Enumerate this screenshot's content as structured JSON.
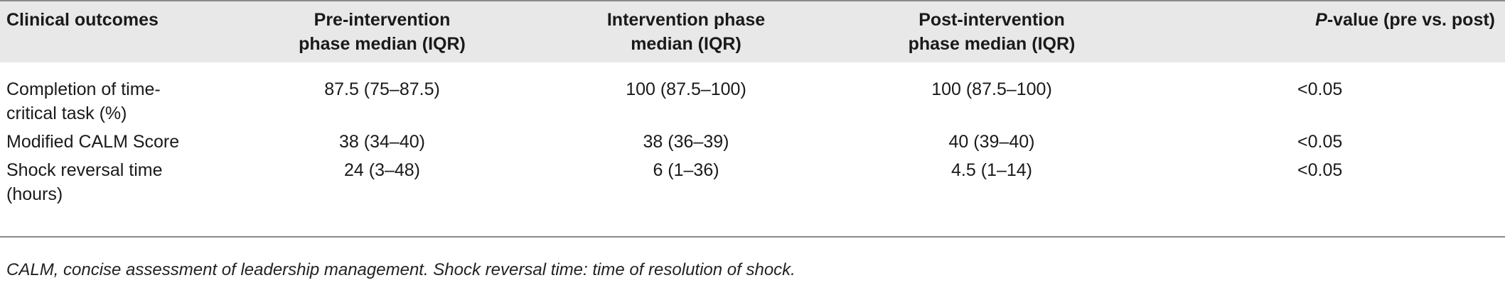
{
  "table": {
    "headers": {
      "outcome": "Clinical outcomes",
      "pre_line1": "Pre-intervention",
      "pre_line2": "phase median (IQR)",
      "int_line1": "Intervention phase",
      "int_line2": "median (IQR)",
      "post_line1": "Post-intervention",
      "post_line2": "phase median (IQR)",
      "p_italic": "P",
      "p_rest": "-value (pre vs. post)"
    },
    "rows": [
      {
        "outcome_line1": "Completion of time-",
        "outcome_line2": "critical task (%)",
        "pre": "87.5 (75–87.5)",
        "intervention": "100 (87.5–100)",
        "post": "100 (87.5–100)",
        "p": "<0.05"
      },
      {
        "outcome_line1": "Modified CALM Score",
        "outcome_line2": "",
        "pre": "38 (34–40)",
        "intervention": "38 (36–39)",
        "post": "40 (39–40)",
        "p": "<0.05"
      },
      {
        "outcome_line1": "Shock reversal time",
        "outcome_line2": "(hours)",
        "pre": "24 (3–48)",
        "intervention": "6 (1–36)",
        "post": "4.5 (1–14)",
        "p": "<0.05"
      }
    ]
  },
  "footnote": "CALM, concise assessment of leadership management. Shock reversal time: time of resolution of shock."
}
